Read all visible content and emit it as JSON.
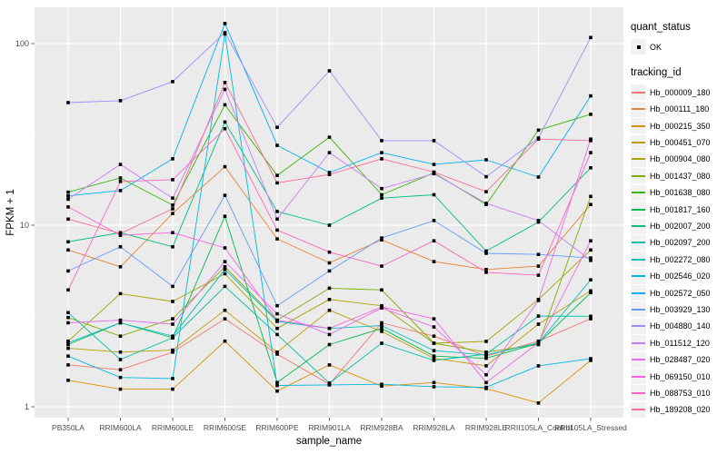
{
  "chart_data": {
    "type": "line",
    "title": "",
    "xlabel": "sample_name",
    "ylabel": "FPKM + 1",
    "y_scale": "log10",
    "y_ticks": [
      1,
      10,
      100
    ],
    "y_tick_labels": [
      "1",
      "10",
      "100"
    ],
    "y_minor_ticks": [
      3.162,
      31.62
    ],
    "ylim": [
      0.87,
      158
    ],
    "grid": true,
    "legend_position": "right",
    "panel_background": "#EBEBEB",
    "gridline_color": "#FFFFFF",
    "point_color": "#000000",
    "point_shape": "filled-square",
    "tick_label_color": "#4D4D4D",
    "axis_title_color": "#000000",
    "categories": [
      "PB350LA",
      "RRIM600LA",
      "RRIM600LE",
      "RRIM600SE",
      "RRIM600PE",
      "RRIM901LA",
      "RRIM928BA",
      "RRIM928LA",
      "RRIM928LE",
      "RRII105LA_Control",
      "RRII105LA_Stressed"
    ],
    "legend": {
      "quant_status_title": "quant_status",
      "quant_status_items": [
        {
          "label": "OK",
          "marker": "black-square"
        }
      ],
      "tracking_id_title": "tracking_id"
    },
    "series": [
      {
        "name": "Hb_000009_180",
        "color": "#F8766D",
        "values": [
          1.7,
          1.6,
          2.0,
          3.05,
          1.95,
          1.33,
          2.9,
          2.45,
          1.9,
          2.3,
          3.05
        ]
      },
      {
        "name": "Hb_000111_180",
        "color": "#EA8331",
        "values": [
          7.3,
          5.9,
          11.6,
          21,
          8.4,
          6.2,
          8.3,
          6.3,
          5.7,
          5.95,
          13.0
        ]
      },
      {
        "name": "Hb_000215_350",
        "color": "#D89000",
        "values": [
          1.4,
          1.25,
          1.25,
          2.3,
          1.22,
          1.7,
          1.3,
          1.36,
          1.26,
          1.05,
          1.8
        ]
      },
      {
        "name": "Hb_000451_070",
        "color": "#C09B00",
        "values": [
          2.1,
          2.0,
          2.05,
          3.4,
          2.0,
          3.4,
          2.6,
          1.85,
          1.68,
          2.85,
          4.35
        ]
      },
      {
        "name": "Hb_000904_080",
        "color": "#A3A500",
        "values": [
          2.3,
          4.2,
          3.8,
          5.4,
          2.7,
          3.9,
          3.6,
          2.24,
          2.29,
          3.9,
          7.3
        ]
      },
      {
        "name": "Hb_001437_080",
        "color": "#7CAE00",
        "values": [
          3.1,
          2.45,
          3.05,
          5.9,
          3.0,
          4.5,
          4.4,
          2.24,
          2.0,
          2.2,
          14.4
        ]
      },
      {
        "name": "Hb_001638_080",
        "color": "#39B600",
        "values": [
          15.2,
          18.2,
          12.9,
          46,
          18.8,
          30.5,
          14.7,
          19.4,
          13.0,
          33.4,
          40.8
        ]
      },
      {
        "name": "Hb_001817_160",
        "color": "#00BB4E",
        "values": [
          2.2,
          2.9,
          2.4,
          11.2,
          1.36,
          2.2,
          2.7,
          1.9,
          1.85,
          2.24,
          4.25
        ]
      },
      {
        "name": "Hb_002007_200",
        "color": "#00BF7D",
        "values": [
          8.1,
          9.1,
          7.6,
          37,
          11.9,
          10.0,
          14.1,
          14.7,
          7.2,
          10.4,
          20.7
        ]
      },
      {
        "name": "Hb_002097_200",
        "color": "#00C1A3",
        "values": [
          3.3,
          1.82,
          2.4,
          4.6,
          2.5,
          1.35,
          2.24,
          1.8,
          1.95,
          3.16,
          3.15
        ]
      },
      {
        "name": "Hb_002272_080",
        "color": "#00BFC4",
        "values": [
          2.25,
          2.9,
          2.45,
          5.7,
          2.95,
          2.7,
          2.8,
          2.04,
          1.93,
          2.25,
          5.0
        ]
      },
      {
        "name": "Hb_002546_020",
        "color": "#00B9E1",
        "values": [
          1.9,
          1.45,
          1.43,
          113,
          1.31,
          1.32,
          1.33,
          1.29,
          1.28,
          1.68,
          1.84
        ]
      },
      {
        "name": "Hb_002572_050",
        "color": "#00B0F6",
        "values": [
          14.5,
          15.5,
          23.2,
          129,
          27.5,
          19.5,
          25.1,
          21.6,
          22.9,
          18.4,
          51.5
        ]
      },
      {
        "name": "Hb_003929_130",
        "color": "#619CFF",
        "values": [
          5.6,
          7.6,
          4.6,
          14.6,
          3.6,
          5.6,
          8.5,
          10.6,
          7.0,
          6.9,
          6.6
        ]
      },
      {
        "name": "Hb_004880_140",
        "color": "#9590FF",
        "values": [
          47.3,
          48.5,
          61.7,
          115,
          34.6,
          70.8,
          29.2,
          29.2,
          18.5,
          30.2,
          108
        ]
      },
      {
        "name": "Hb_011512_120",
        "color": "#C77CFF",
        "values": [
          13.9,
          21.6,
          14.1,
          56,
          10.8,
          25.1,
          15.9,
          19.2,
          13.2,
          10.6,
          6.4
        ]
      },
      {
        "name": "Hb_028487_020",
        "color": "#E76BF3",
        "values": [
          2.9,
          3.0,
          2.85,
          6.3,
          3.25,
          2.5,
          3.5,
          2.75,
          1.5,
          3.85,
          29.8
        ]
      },
      {
        "name": "Hb_069150_010",
        "color": "#F962DE",
        "values": [
          12.6,
          8.8,
          9.1,
          7.5,
          3.0,
          2.7,
          3.55,
          3.05,
          1.36,
          2.25,
          8.2
        ]
      },
      {
        "name": "Hb_088753_010",
        "color": "#FF62BC",
        "values": [
          4.4,
          17.4,
          17.8,
          34,
          9.4,
          7.1,
          5.95,
          8.2,
          5.5,
          5.3,
          25.1
        ]
      },
      {
        "name": "Hb_189208_020",
        "color": "#FF6A98",
        "values": [
          10.8,
          9.0,
          12.3,
          61,
          17.1,
          19.0,
          23.2,
          19.6,
          15.3,
          29.8,
          29.2
        ]
      }
    ]
  }
}
